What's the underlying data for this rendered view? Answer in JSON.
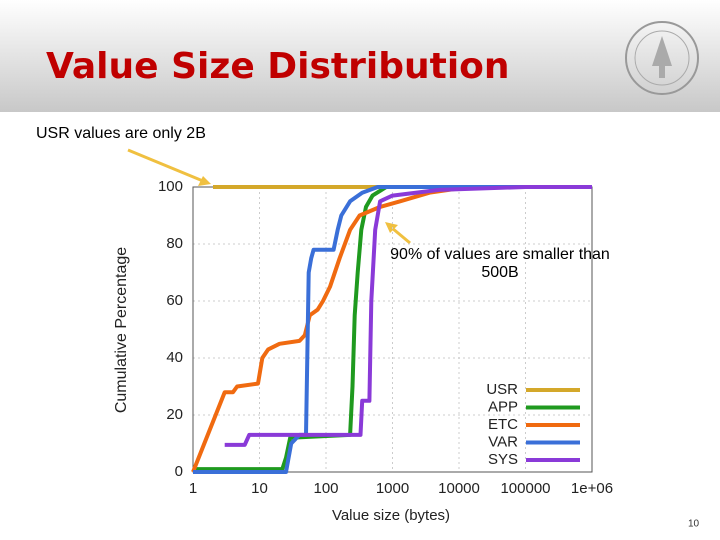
{
  "chart_data": {
    "type": "line",
    "title": "Value Size Distribution",
    "x_label": "Value size (bytes)",
    "y_label": "Cumulative Percentage",
    "log_x": true,
    "grid": true,
    "legend": "bottom-right",
    "xlim": [
      1,
      1000000
    ],
    "xticks": [
      1,
      10,
      100,
      1000,
      10000,
      100000,
      {
        "value": 1000000,
        "label": "1e+06"
      }
    ],
    "ylim": [
      0,
      100
    ],
    "yticks": [
      0,
      20,
      40,
      60,
      80,
      100
    ],
    "annotations": [
      "USR values are only 2B",
      "90% of values are smaller than 500B"
    ],
    "series": [
      {
        "name": "USR",
        "color": "#d4a82a",
        "x": [
          2,
          1000000
        ],
        "values": [
          100,
          100
        ]
      },
      {
        "name": "APP",
        "color": "#1f9a1f",
        "x": [
          1,
          22,
          25,
          29,
          230,
          250,
          270,
          300,
          340,
          400,
          500,
          800,
          1000000
        ],
        "values": [
          1,
          1,
          5,
          12,
          13,
          30,
          55,
          70,
          85,
          93,
          97,
          100,
          100
        ]
      },
      {
        "name": "ETC",
        "color": "#f06a10",
        "x": [
          1,
          3,
          4,
          4.6,
          9.5,
          11,
          13.5,
          20,
          40,
          48,
          57,
          75,
          90,
          115,
          160,
          230,
          320,
          650,
          1300,
          3600,
          14000,
          1000000
        ],
        "values": [
          0,
          28,
          28,
          30,
          31,
          40,
          43,
          45,
          46,
          48,
          55,
          57,
          60,
          65,
          75,
          85,
          90,
          93,
          95,
          98,
          100,
          100
        ]
      },
      {
        "name": "VAR",
        "color": "#3a6fd8",
        "x": [
          1,
          25,
          30,
          40,
          50,
          55,
          60,
          65,
          130,
          150,
          170,
          230,
          350,
          600,
          1000000
        ],
        "values": [
          0,
          0,
          10,
          13,
          13,
          70,
          75,
          78,
          78,
          85,
          90,
          95,
          98,
          100,
          100
        ]
      },
      {
        "name": "SYS",
        "color": "#8a3ad8",
        "x": [
          3,
          6,
          7,
          330,
          350,
          450,
          480,
          550,
          650,
          1000,
          5000,
          100000,
          1000000
        ],
        "values": [
          9.5,
          9.5,
          13,
          13,
          25,
          25,
          60,
          85,
          95,
          97,
          99,
          100,
          100
        ]
      }
    ]
  },
  "slide": {
    "page_number": "10"
  }
}
